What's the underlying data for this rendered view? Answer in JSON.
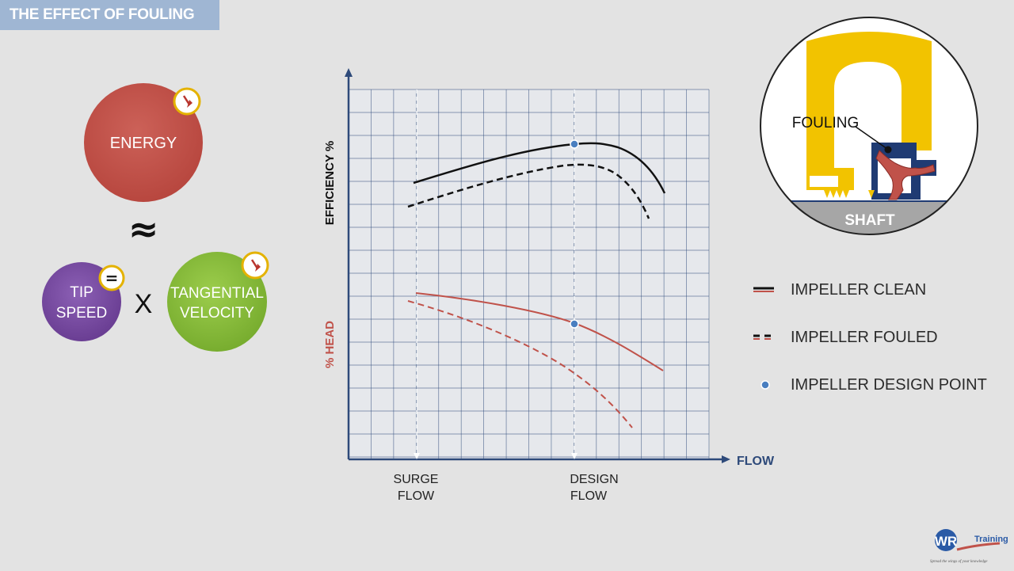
{
  "header": {
    "title": "THE EFFECT OF FOULING"
  },
  "equation": {
    "energy_label": "ENERGY",
    "approx_symbol": "≈",
    "tip_speed_line1": "TIP",
    "tip_speed_line2": "SPEED",
    "times_symbol": "X",
    "tangential_line1": "TANGENTIAL",
    "tangential_line2": "VELOCITY",
    "equals_badge": "=",
    "energy_trend_icon": "down-arrow-dial-icon",
    "tangential_trend_icon": "down-arrow-dial-icon",
    "colors": {
      "energy": "#c0524a",
      "tip_speed": "#7b4fa3",
      "tangential": "#8cbf3f"
    }
  },
  "chart": {
    "y_label_top": "EFFICIENCY %",
    "y_label_bottom": "% HEAD",
    "x_label": "FLOW",
    "surge_line1": "SURGE",
    "surge_line2": "FLOW",
    "design_line1": "DESIGN",
    "design_line2": "FLOW",
    "colors": {
      "efficiency": "#111111",
      "head": "#c0524a",
      "axis": "#2e4a7a",
      "grid": "#2e4a7a",
      "design_point": "#4a7fc0"
    }
  },
  "impeller_diagram": {
    "fouling_label": "FOULING",
    "shaft_label": "SHAFT",
    "colors": {
      "impeller": "#f2c300",
      "passage": "#1f3b73",
      "deposit": "#c0524a",
      "shaft": "#a6a6a6"
    }
  },
  "legend": {
    "items": [
      {
        "label": "IMPELLER CLEAN",
        "marker": "solid-line"
      },
      {
        "label": "IMPELLER FOULED",
        "marker": "dashed-line"
      },
      {
        "label": "IMPELLER DESIGN POINT",
        "marker": "dot"
      }
    ]
  },
  "branding": {
    "logo_letters": "WR",
    "logo_word": "Training",
    "tagline": "Spread the wings of your knowledge"
  }
}
